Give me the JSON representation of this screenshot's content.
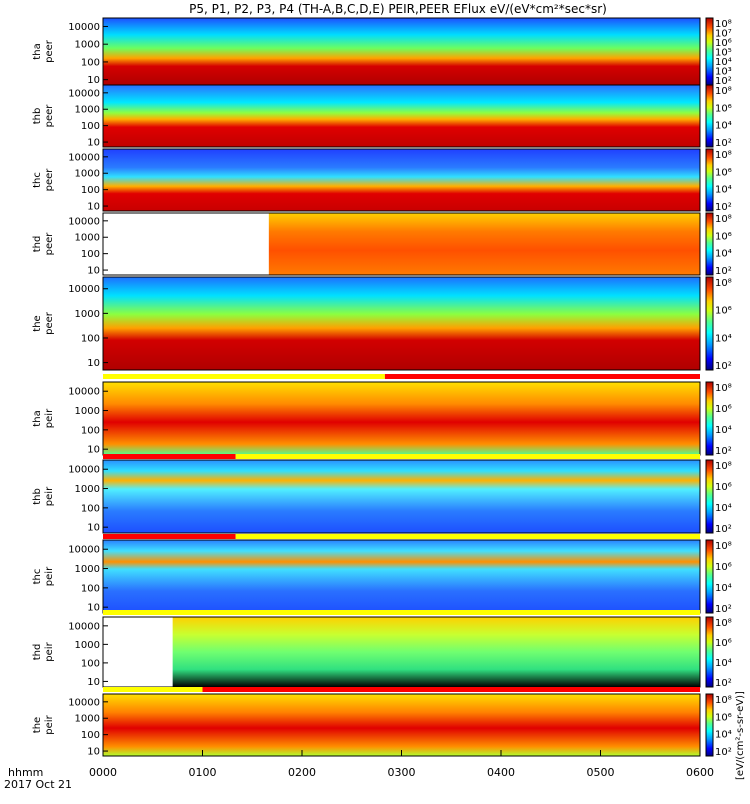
{
  "chart_data": {
    "type": "heatmap",
    "title": "P5, P1, P2, P3, P4 (TH-A,B,C,D,E) PEIR,PEER EFlux eV/(eV*cm²*sec*sr)",
    "colorbar_label": "[eV/(cm²-s-sr-eV)]",
    "colorbar_ticks": [
      "10⁸",
      "10⁶",
      "10⁴",
      "10²"
    ],
    "colorbar_ticks_top": [
      "10⁸",
      "10⁷",
      "10⁶",
      "10⁵",
      "10⁴",
      "10³",
      "10²"
    ],
    "y_ticks": [
      "10000",
      "1000",
      "100",
      "10"
    ],
    "y_scale": "log",
    "ylim": [
      5,
      30000
    ],
    "x_ticks": [
      "0000",
      "0100",
      "0200",
      "0300",
      "0400",
      "0500",
      "0600"
    ],
    "x_label": "hhmm",
    "date_label": "2017 Oct 21",
    "colormap": [
      "#00007a",
      "#0000ff",
      "#0090ff",
      "#00e8ff",
      "#4dff9a",
      "#c8ff1a",
      "#ffd000",
      "#ff6a00",
      "#e00000",
      "#9a0000"
    ],
    "panels": [
      {
        "probe": "tha",
        "species": "peer",
        "label": "tha peer"
      },
      {
        "probe": "thb",
        "species": "peer",
        "label": "thb peer"
      },
      {
        "probe": "thc",
        "species": "peer",
        "label": "thc peer"
      },
      {
        "probe": "thd",
        "species": "peer",
        "label": "thd peer"
      },
      {
        "probe": "the",
        "species": "peer",
        "label": "the peer"
      },
      {
        "probe": "tha",
        "species": "peir",
        "label": "tha peir"
      },
      {
        "probe": "thb",
        "species": "peir",
        "label": "thb peir"
      },
      {
        "probe": "thc",
        "species": "peir",
        "label": "thc peir"
      },
      {
        "probe": "thd",
        "species": "peir",
        "label": "thd peir"
      },
      {
        "probe": "the",
        "species": "peir",
        "label": "the peir"
      }
    ],
    "mode_bars": [
      {
        "after_panel": "the peer",
        "segments": [
          {
            "from": "0000",
            "to": "0250",
            "color": "#ffff00"
          },
          {
            "from": "0250",
            "to": "0600",
            "color": "#ff0000"
          }
        ]
      },
      {
        "after_panel": "tha peir",
        "segments": [
          {
            "from": "0000",
            "to": "0120",
            "color": "#ff0000"
          },
          {
            "from": "0120",
            "to": "0600",
            "color": "#ffff00"
          }
        ]
      },
      {
        "after_panel": "thb peir",
        "segments": [
          {
            "from": "0000",
            "to": "0120",
            "color": "#ff0000"
          },
          {
            "from": "0120",
            "to": "0600",
            "color": "#ffff00"
          }
        ]
      },
      {
        "after_panel": "thc peir",
        "segments": [
          {
            "from": "0000",
            "to": "0600",
            "color": "#ffff00"
          }
        ]
      },
      {
        "after_panel": "thd peir",
        "segments": [
          {
            "from": "0000",
            "to": "0100",
            "color": "#ffff00"
          },
          {
            "from": "0100",
            "to": "0600",
            "color": "#ff0000"
          }
        ]
      }
    ]
  }
}
